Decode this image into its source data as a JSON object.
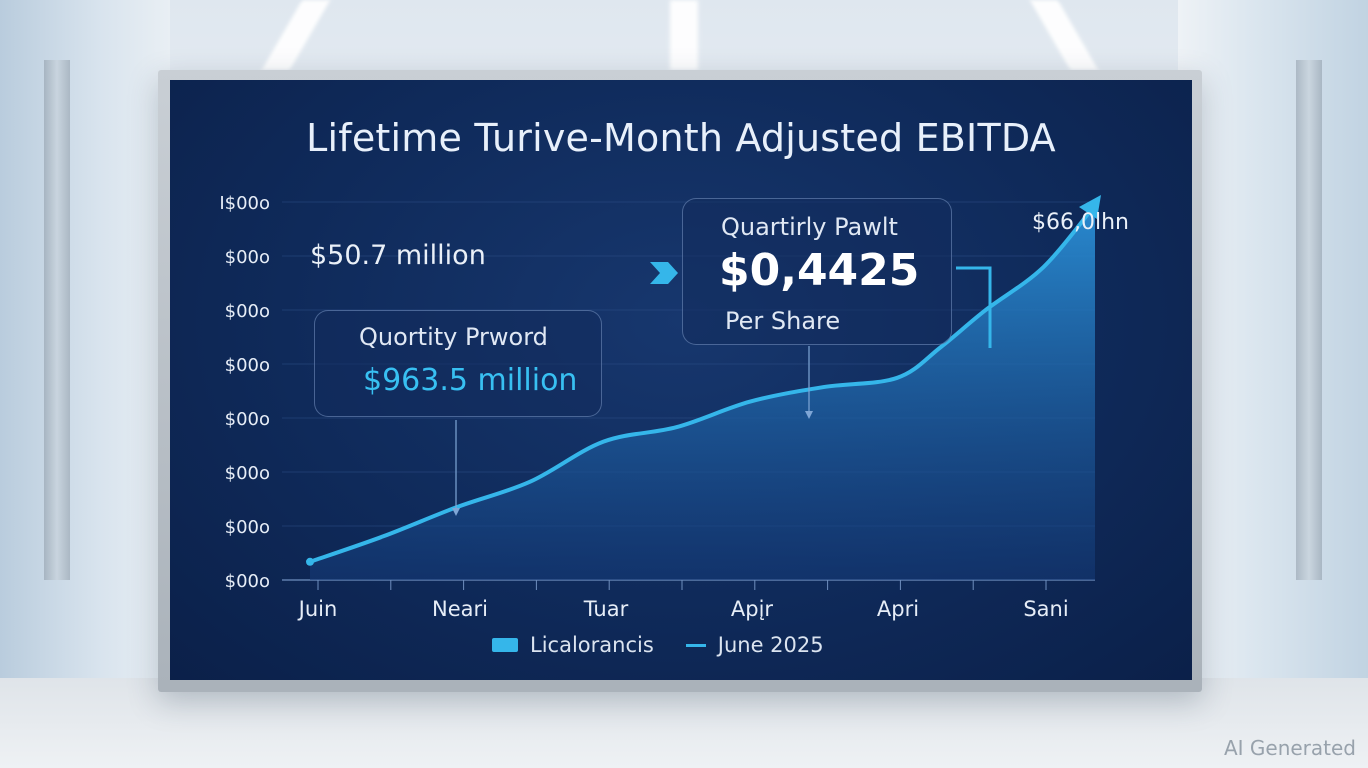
{
  "chart_data": {
    "type": "area",
    "title": "Lifetime Turive-Month Adjusted EBITDA",
    "y_tick_labels": [
      "I$00o",
      "$00o",
      "$00o",
      "$00o",
      "$00o",
      "$00o",
      "$00o",
      "$00o"
    ],
    "x_tick_labels": [
      "Juin",
      "Neari",
      "Tuar",
      "Apįr",
      "Apri",
      "Sani"
    ],
    "series": [
      {
        "name": "Licalorancis",
        "x": [
          0,
          0.5,
          1,
          1.5,
          2,
          2.5,
          3,
          3.5,
          4,
          4.3,
          4.6,
          5,
          5.35
        ],
        "values": [
          0.5,
          1.2,
          2.0,
          2.7,
          3.8,
          4.2,
          4.9,
          5.3,
          5.55,
          6.4,
          7.4,
          8.6,
          10.3
        ]
      }
    ],
    "legend": [
      "Licalorancis",
      "June 2025"
    ],
    "legend_position": "bottom-center",
    "colors": {
      "line": "#35b6ea",
      "area_top": "#2a8fd6",
      "area_bottom": "#143a78"
    },
    "annotations": {
      "top_left_value": "$50.7 million",
      "end_value": "$66,0lhn",
      "left_callout": {
        "label": "Quortity Prword",
        "value": "$963.5 million"
      },
      "right_callout": {
        "label": "Quartirly Pawlt",
        "value": "$0,4425",
        "sublabel": "Per Share"
      }
    }
  },
  "watermark": "AI Generated"
}
